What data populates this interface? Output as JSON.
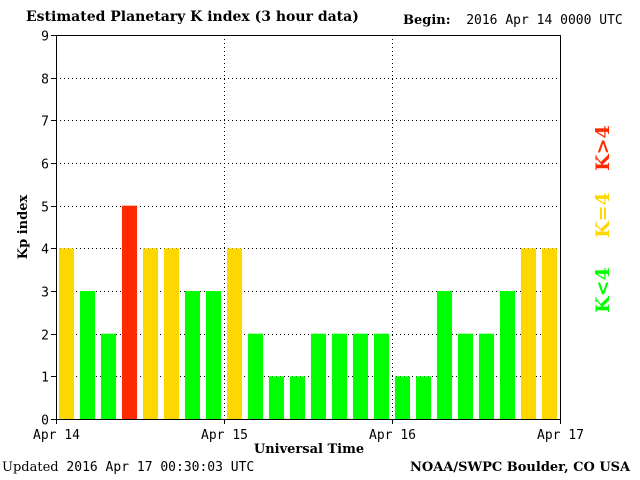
{
  "header": {
    "title": "Estimated Planetary K index (3 hour data)",
    "begin_label": "Begin:",
    "begin_value": "2016 Apr 14 0000 UTC"
  },
  "footer": {
    "updated_label": "Updated",
    "updated_value": "2016 Apr 17 00:30:03 UTC",
    "credit": "NOAA/SWPC Boulder, CO USA"
  },
  "colors": {
    "low": "#00ff00",
    "storm_threshold": "#ffd700",
    "storm": "#ff2a00",
    "grid": "#000000"
  },
  "chart_data": {
    "type": "bar",
    "title": "Estimated Planetary K index (3 hour data)",
    "xlabel": "Universal Time",
    "ylabel": "Kp index",
    "ylim": [
      0,
      9
    ],
    "yticks": [
      0,
      1,
      2,
      3,
      4,
      5,
      6,
      7,
      8,
      9
    ],
    "xtick_labels": [
      "Apr 14",
      "Apr 15",
      "Apr 16",
      "Apr 17"
    ],
    "grid": true,
    "interval_hours": 3,
    "values": [
      4,
      3,
      2,
      5,
      4,
      4,
      3,
      3,
      4,
      2,
      1,
      1,
      2,
      2,
      2,
      2,
      1,
      1,
      3,
      2,
      2,
      3,
      4,
      4
    ],
    "legend": [
      {
        "label": "K<4",
        "color": "#00ff00"
      },
      {
        "label": "K=4",
        "color": "#ffd700"
      },
      {
        "label": "K>4",
        "color": "#ff2a00"
      }
    ],
    "legend_position": "right"
  }
}
